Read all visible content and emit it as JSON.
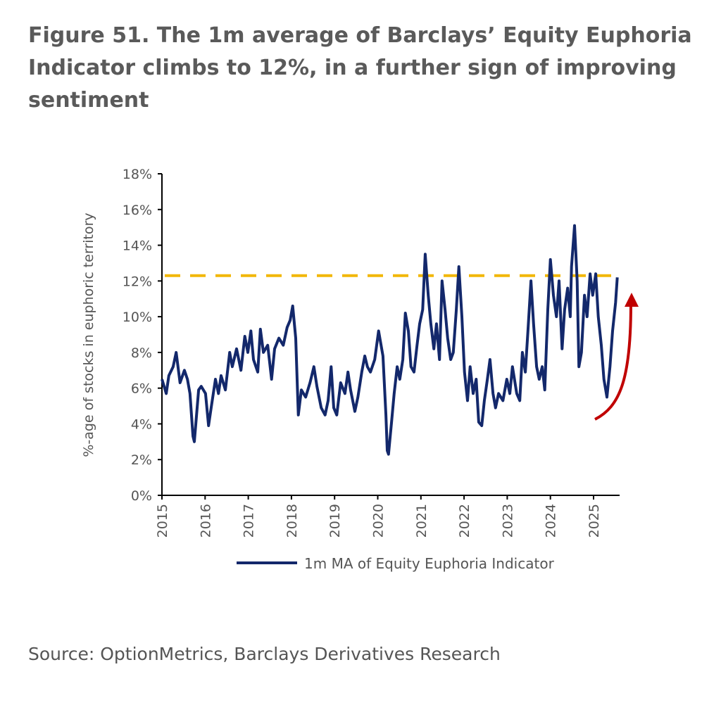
{
  "title": "Figure 51. The 1m average of Barclays’ Equity Euphoria Indicator climbs to 12%, in a further sign of improving sentiment",
  "source": "Source: OptionMetrics, Barclays Derivatives Research",
  "chart_data": {
    "type": "line",
    "ylabel": "%-age of stocks in euphoric territory",
    "ylim": [
      0,
      18
    ],
    "yticks": [
      "0%",
      "2%",
      "4%",
      "6%",
      "8%",
      "10%",
      "12%",
      "14%",
      "16%",
      "18%"
    ],
    "xlim": [
      2015,
      2025.7
    ],
    "xticks": [
      "2015",
      "2016",
      "2017",
      "2018",
      "2019",
      "2020",
      "2021",
      "2022",
      "2023",
      "2024",
      "2025"
    ],
    "reference_line": {
      "value": 12.3,
      "style": "dashed",
      "color": "#f2b705"
    },
    "annotation": "red upward arrow",
    "colors": {
      "series": "#13286b",
      "arrow": "#c00000"
    },
    "legend": {
      "position": "bottom",
      "label": "1m MA of Equity Euphoria Indicator"
    },
    "series": [
      {
        "name": "1m MA of Equity Euphoria Indicator",
        "points": [
          [
            2015.0,
            6.5
          ],
          [
            2015.1,
            5.7
          ],
          [
            2015.16,
            6.7
          ],
          [
            2015.26,
            7.2
          ],
          [
            2015.33,
            8.0
          ],
          [
            2015.42,
            6.3
          ],
          [
            2015.52,
            7.0
          ],
          [
            2015.59,
            6.5
          ],
          [
            2015.65,
            5.7
          ],
          [
            2015.72,
            3.3
          ],
          [
            2015.75,
            3.0
          ],
          [
            2015.85,
            5.9
          ],
          [
            2015.91,
            6.1
          ],
          [
            2016.01,
            5.7
          ],
          [
            2016.08,
            3.9
          ],
          [
            2016.14,
            4.9
          ],
          [
            2016.24,
            6.5
          ],
          [
            2016.31,
            5.7
          ],
          [
            2016.37,
            6.7
          ],
          [
            2016.47,
            5.9
          ],
          [
            2016.57,
            8.0
          ],
          [
            2016.63,
            7.2
          ],
          [
            2016.73,
            8.2
          ],
          [
            2016.83,
            7.0
          ],
          [
            2016.92,
            8.9
          ],
          [
            2016.99,
            8.0
          ],
          [
            2017.06,
            9.2
          ],
          [
            2017.12,
            7.6
          ],
          [
            2017.22,
            6.9
          ],
          [
            2017.28,
            9.3
          ],
          [
            2017.35,
            8.0
          ],
          [
            2017.45,
            8.4
          ],
          [
            2017.54,
            6.5
          ],
          [
            2017.61,
            8.2
          ],
          [
            2017.71,
            8.8
          ],
          [
            2017.81,
            8.4
          ],
          [
            2017.9,
            9.4
          ],
          [
            2017.97,
            9.8
          ],
          [
            2018.03,
            10.6
          ],
          [
            2018.1,
            8.8
          ],
          [
            2018.16,
            4.5
          ],
          [
            2018.23,
            5.9
          ],
          [
            2018.33,
            5.5
          ],
          [
            2018.43,
            6.3
          ],
          [
            2018.52,
            7.2
          ],
          [
            2018.59,
            6.1
          ],
          [
            2018.69,
            4.9
          ],
          [
            2018.78,
            4.5
          ],
          [
            2018.85,
            5.3
          ],
          [
            2018.92,
            7.2
          ],
          [
            2018.98,
            4.9
          ],
          [
            2019.05,
            4.5
          ],
          [
            2019.14,
            6.3
          ],
          [
            2019.24,
            5.7
          ],
          [
            2019.31,
            6.9
          ],
          [
            2019.37,
            5.9
          ],
          [
            2019.47,
            4.7
          ],
          [
            2019.54,
            5.5
          ],
          [
            2019.63,
            6.9
          ],
          [
            2019.7,
            7.8
          ],
          [
            2019.76,
            7.2
          ],
          [
            2019.83,
            6.9
          ],
          [
            2019.93,
            7.6
          ],
          [
            2020.02,
            9.2
          ],
          [
            2020.12,
            7.8
          ],
          [
            2020.19,
            4.5
          ],
          [
            2020.22,
            2.5
          ],
          [
            2020.25,
            2.3
          ],
          [
            2020.32,
            4.1
          ],
          [
            2020.38,
            5.7
          ],
          [
            2020.45,
            7.2
          ],
          [
            2020.51,
            6.5
          ],
          [
            2020.58,
            7.6
          ],
          [
            2020.64,
            10.2
          ],
          [
            2020.71,
            9.2
          ],
          [
            2020.77,
            7.2
          ],
          [
            2020.84,
            6.9
          ],
          [
            2020.91,
            8.4
          ],
          [
            2020.97,
            9.6
          ],
          [
            2021.04,
            10.4
          ],
          [
            2021.1,
            13.5
          ],
          [
            2021.17,
            11.2
          ],
          [
            2021.23,
            9.6
          ],
          [
            2021.3,
            8.2
          ],
          [
            2021.36,
            9.6
          ],
          [
            2021.43,
            7.6
          ],
          [
            2021.49,
            12.0
          ],
          [
            2021.56,
            10.4
          ],
          [
            2021.62,
            8.8
          ],
          [
            2021.69,
            7.6
          ],
          [
            2021.75,
            8.0
          ],
          [
            2021.82,
            10.4
          ],
          [
            2021.88,
            12.8
          ],
          [
            2021.95,
            10.0
          ],
          [
            2022.01,
            6.9
          ],
          [
            2022.08,
            5.3
          ],
          [
            2022.14,
            7.2
          ],
          [
            2022.21,
            5.7
          ],
          [
            2022.28,
            6.5
          ],
          [
            2022.34,
            4.1
          ],
          [
            2022.41,
            3.9
          ],
          [
            2022.47,
            5.3
          ],
          [
            2022.54,
            6.5
          ],
          [
            2022.6,
            7.6
          ],
          [
            2022.67,
            5.7
          ],
          [
            2022.73,
            4.9
          ],
          [
            2022.8,
            5.7
          ],
          [
            2022.9,
            5.3
          ],
          [
            2022.99,
            6.5
          ],
          [
            2023.06,
            5.7
          ],
          [
            2023.12,
            7.2
          ],
          [
            2023.22,
            5.7
          ],
          [
            2023.29,
            5.3
          ],
          [
            2023.35,
            8.0
          ],
          [
            2023.42,
            6.9
          ],
          [
            2023.48,
            9.2
          ],
          [
            2023.55,
            12.0
          ],
          [
            2023.61,
            9.6
          ],
          [
            2023.68,
            7.2
          ],
          [
            2023.74,
            6.5
          ],
          [
            2023.81,
            7.2
          ],
          [
            2023.87,
            5.9
          ],
          [
            2023.94,
            10.4
          ],
          [
            2024.0,
            13.2
          ],
          [
            2024.07,
            11.2
          ],
          [
            2024.14,
            10.0
          ],
          [
            2024.2,
            12.0
          ],
          [
            2024.27,
            8.2
          ],
          [
            2024.33,
            10.4
          ],
          [
            2024.4,
            11.6
          ],
          [
            2024.46,
            10.0
          ],
          [
            2024.49,
            12.8
          ],
          [
            2024.56,
            15.1
          ],
          [
            2024.62,
            12.0
          ],
          [
            2024.66,
            7.2
          ],
          [
            2024.72,
            8.0
          ],
          [
            2024.79,
            11.2
          ],
          [
            2024.85,
            10.0
          ],
          [
            2024.92,
            12.4
          ],
          [
            2024.98,
            11.2
          ],
          [
            2025.05,
            12.4
          ],
          [
            2025.11,
            10.0
          ],
          [
            2025.18,
            8.4
          ],
          [
            2025.24,
            6.5
          ],
          [
            2025.31,
            5.5
          ],
          [
            2025.38,
            7.2
          ],
          [
            2025.44,
            9.2
          ],
          [
            2025.51,
            10.8
          ],
          [
            2025.55,
            12.2
          ]
        ]
      }
    ]
  }
}
